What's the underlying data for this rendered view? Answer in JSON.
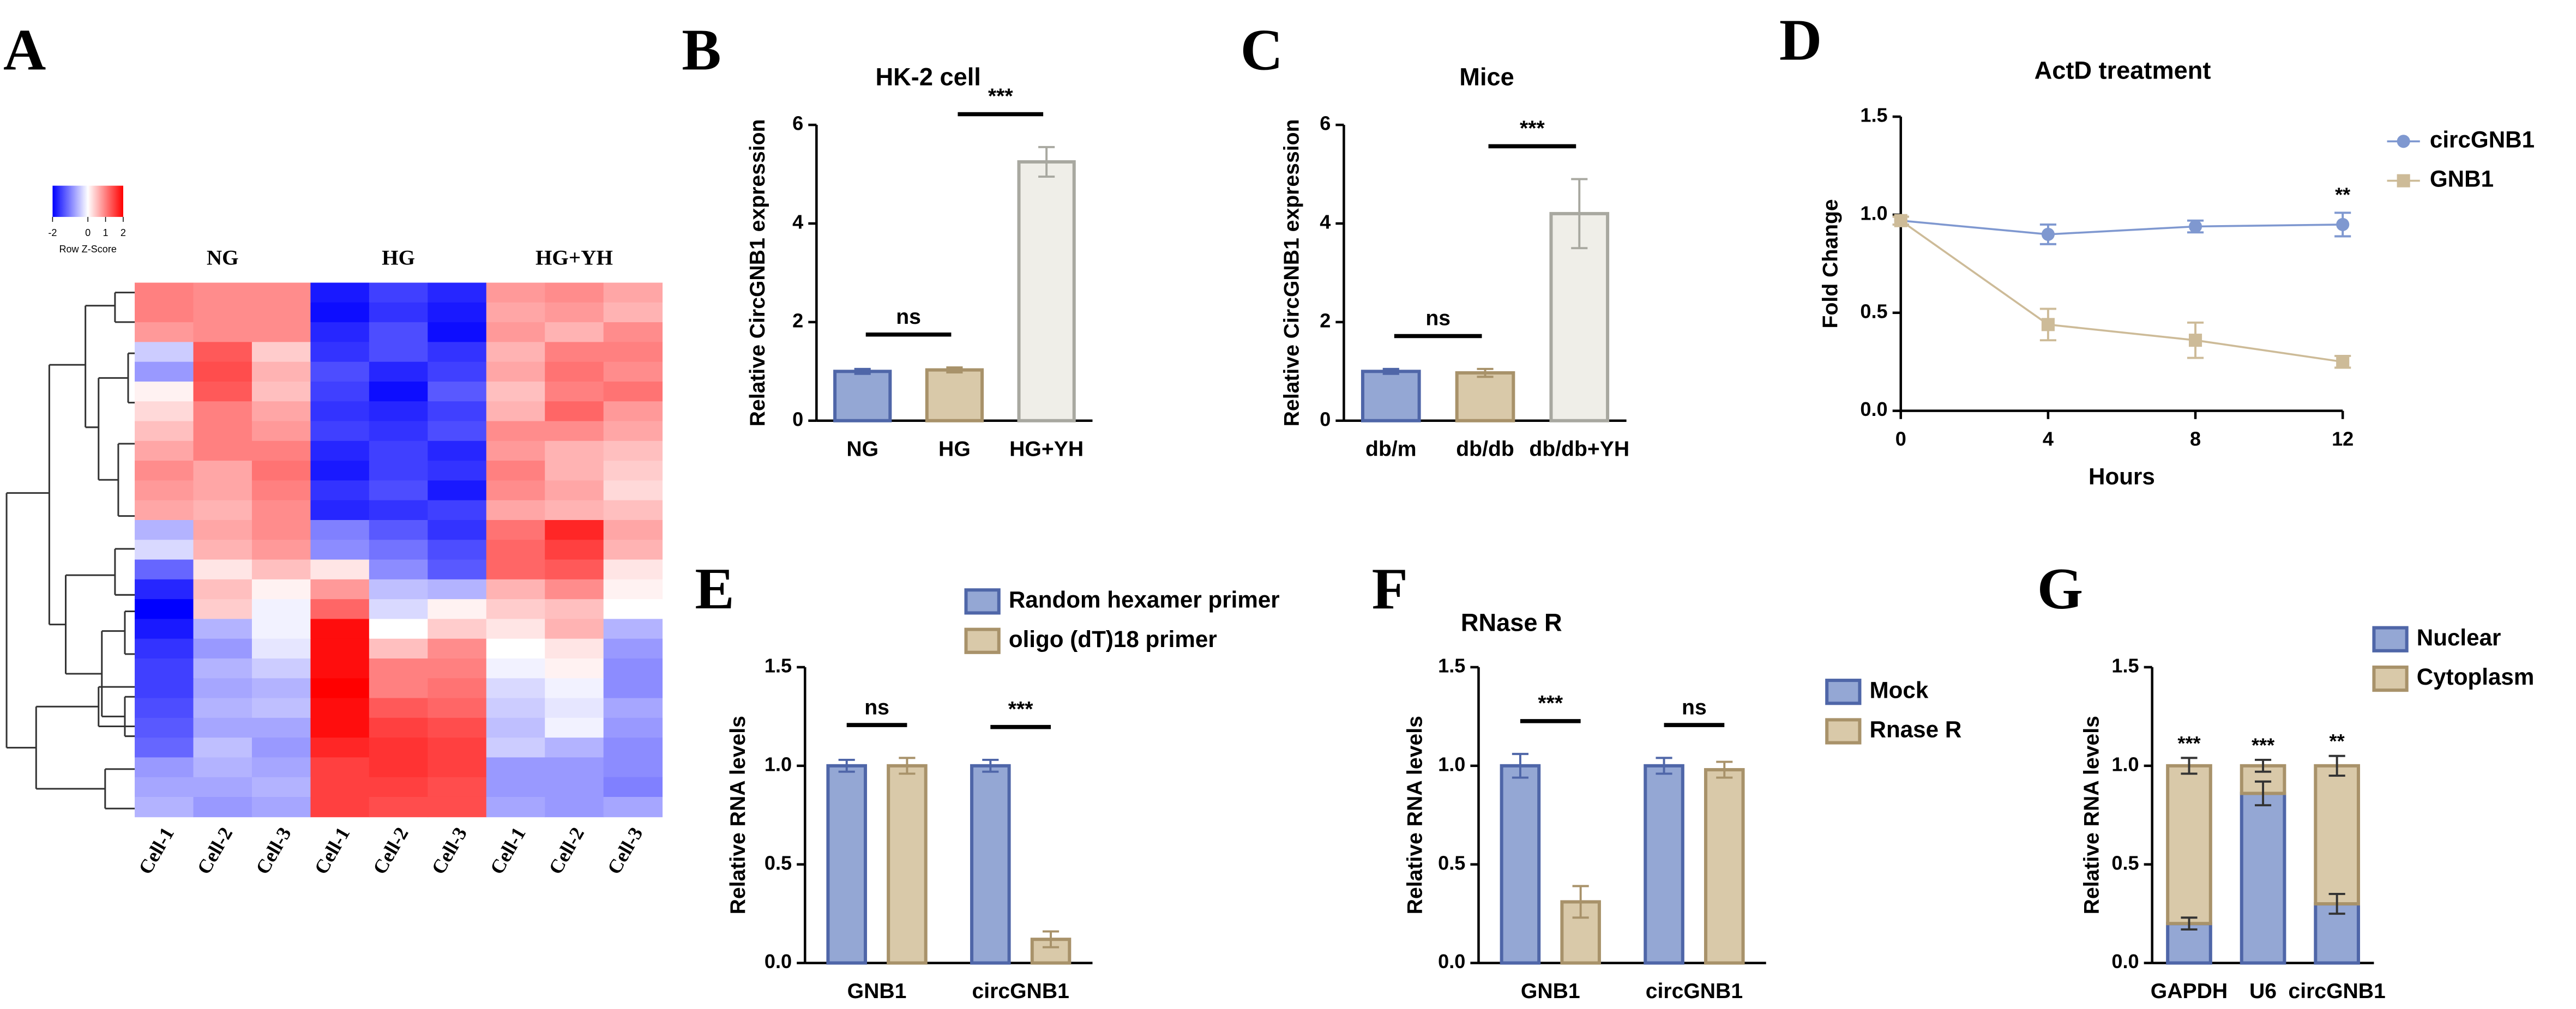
{
  "chart_data": [
    {
      "type": "heatmap",
      "panel_label": "A",
      "groups": [
        "NG",
        "HG",
        "HG+YH"
      ],
      "categories": [
        "Cell-1",
        "Cell-2",
        "Cell-3",
        "Cell-1",
        "Cell-2",
        "Cell-3",
        "Cell-1",
        "Cell-2",
        "Cell-3"
      ],
      "colorbar": {
        "label": "Row Z-Score",
        "ticks": [
          -2,
          0,
          1,
          2
        ],
        "colors": [
          "#0000ff",
          "#ffffff",
          "#ff0000"
        ]
      },
      "values": [
        [
          1.0,
          0.9,
          0.9,
          -1.8,
          -1.5,
          -1.7,
          0.8,
          0.9,
          0.7
        ],
        [
          1.0,
          0.9,
          0.9,
          -1.9,
          -1.6,
          -1.8,
          0.7,
          0.8,
          0.6
        ],
        [
          0.8,
          0.9,
          0.9,
          -1.7,
          -1.4,
          -1.9,
          0.8,
          0.6,
          0.9
        ],
        [
          -0.4,
          1.3,
          0.4,
          -1.6,
          -1.4,
          -1.6,
          0.6,
          1.0,
          1.0
        ],
        [
          -0.8,
          1.4,
          0.6,
          -1.4,
          -1.7,
          -1.5,
          0.7,
          1.1,
          0.9
        ],
        [
          0.1,
          1.3,
          0.5,
          -1.5,
          -1.9,
          -1.3,
          0.5,
          1.0,
          1.1
        ],
        [
          0.3,
          1.0,
          0.7,
          -1.6,
          -1.7,
          -1.5,
          0.6,
          1.2,
          0.8
        ],
        [
          0.5,
          1.0,
          0.8,
          -1.5,
          -1.6,
          -1.4,
          0.9,
          0.9,
          0.7
        ],
        [
          0.7,
          1.0,
          1.0,
          -1.7,
          -1.5,
          -1.7,
          0.8,
          0.6,
          0.5
        ],
        [
          0.9,
          0.7,
          1.1,
          -1.8,
          -1.5,
          -1.6,
          1.0,
          0.6,
          0.4
        ],
        [
          0.8,
          0.7,
          1.0,
          -1.6,
          -1.4,
          -1.8,
          0.9,
          0.7,
          0.3
        ],
        [
          0.7,
          0.6,
          0.9,
          -1.7,
          -1.6,
          -1.5,
          0.7,
          0.6,
          0.5
        ],
        [
          -0.6,
          0.7,
          0.9,
          -1.0,
          -1.3,
          -1.6,
          1.1,
          1.7,
          0.7
        ],
        [
          -0.3,
          0.6,
          0.8,
          -0.9,
          -1.1,
          -1.4,
          1.2,
          1.5,
          0.6
        ],
        [
          -1.2,
          0.2,
          0.5,
          0.2,
          -0.9,
          -1.3,
          1.2,
          1.3,
          0.2
        ],
        [
          -1.7,
          0.5,
          0.1,
          0.8,
          -0.5,
          -0.6,
          0.6,
          0.9,
          0.1
        ],
        [
          -2.0,
          0.4,
          -0.1,
          1.2,
          -0.3,
          0.1,
          0.4,
          0.5,
          0.0
        ],
        [
          -1.8,
          -0.6,
          -0.1,
          1.9,
          0.0,
          0.4,
          0.2,
          0.6,
          -0.6
        ],
        [
          -1.6,
          -0.8,
          -0.2,
          1.9,
          0.5,
          0.9,
          0.0,
          0.2,
          -0.8
        ],
        [
          -1.5,
          -0.6,
          -0.4,
          1.9,
          1.0,
          1.0,
          -0.1,
          0.1,
          -0.9
        ],
        [
          -1.5,
          -0.7,
          -0.6,
          2.0,
          1.0,
          1.1,
          -0.3,
          -0.1,
          -0.9
        ],
        [
          -1.4,
          -0.6,
          -0.5,
          1.9,
          1.3,
          1.2,
          -0.4,
          -0.2,
          -0.7
        ],
        [
          -1.3,
          -0.7,
          -0.7,
          1.9,
          1.5,
          1.4,
          -0.5,
          -0.1,
          -0.8
        ],
        [
          -1.2,
          -0.5,
          -0.8,
          1.7,
          1.6,
          1.5,
          -0.4,
          -0.6,
          -0.9
        ],
        [
          -0.8,
          -0.6,
          -0.7,
          1.5,
          1.6,
          1.5,
          -0.8,
          -0.8,
          -0.9
        ],
        [
          -0.7,
          -0.7,
          -0.6,
          1.5,
          1.5,
          1.4,
          -0.8,
          -0.8,
          -1.0
        ],
        [
          -0.6,
          -0.8,
          -0.7,
          1.5,
          1.4,
          1.4,
          -0.7,
          -0.8,
          -0.7
        ]
      ]
    },
    {
      "type": "bar",
      "panel_label": "B",
      "title": "HK-2 cell",
      "ylabel": "Relative CircGNB1 expression",
      "categories": [
        "NG",
        "HG",
        "HG+YH"
      ],
      "values": [
        1.0,
        1.03,
        5.25
      ],
      "errors": [
        0.05,
        0.05,
        0.3
      ],
      "colors": [
        "#94a7d4",
        "#d9c9a9",
        "#efeee8"
      ],
      "edge_colors": [
        "#4f66a8",
        "#a8926a",
        "#a8a8a0"
      ],
      "ylim": [
        0,
        6
      ],
      "yticks": [
        0,
        2,
        4,
        6
      ],
      "annotations": [
        {
          "text": "ns",
          "categories": [
            "NG",
            "HG"
          ]
        },
        {
          "text": "***",
          "categories": [
            "HG",
            "HG+YH"
          ]
        }
      ]
    },
    {
      "type": "bar",
      "panel_label": "C",
      "title": "Mice",
      "ylabel": "Relative CircGNB1 expression",
      "categories": [
        "db/m",
        "db/db",
        "db/db+YH"
      ],
      "values": [
        1.0,
        0.97,
        4.2
      ],
      "errors": [
        0.05,
        0.08,
        0.7
      ],
      "colors": [
        "#94a7d4",
        "#d9c9a9",
        "#efeee8"
      ],
      "edge_colors": [
        "#4f66a8",
        "#a8926a",
        "#a8a8a0"
      ],
      "ylim": [
        0,
        6
      ],
      "yticks": [
        0,
        2,
        4,
        6
      ],
      "annotations": [
        {
          "text": "ns",
          "categories": [
            "db/m",
            "db/db"
          ]
        },
        {
          "text": "***",
          "categories": [
            "db/db",
            "db/db+YH"
          ]
        }
      ]
    },
    {
      "type": "line",
      "panel_label": "D",
      "title": "ActD treatment",
      "xlabel": "Hours",
      "ylabel": "Fold Change",
      "x": [
        0,
        4,
        8,
        12
      ],
      "xlim": [
        0,
        12
      ],
      "xticks": [
        0,
        4,
        8,
        12
      ],
      "ylim": [
        0,
        1.5
      ],
      "yticks": [
        {
          "value": 0,
          "label": "0.0"
        },
        0.5,
        {
          "value": 1,
          "label": "1.0"
        },
        1.5
      ],
      "legend": "right",
      "series": [
        {
          "name": "circGNB1",
          "color": "#7f98d0",
          "marker": "circle",
          "values": [
            0.97,
            0.9,
            0.94,
            0.95
          ],
          "errors": [
            0.02,
            0.05,
            0.03,
            0.06
          ]
        },
        {
          "name": "GNB1",
          "color": "#cdbb98",
          "marker": "square",
          "values": [
            0.97,
            0.44,
            0.36,
            0.25
          ],
          "errors": [
            0.02,
            0.08,
            0.09,
            0.03
          ]
        }
      ],
      "annotations": [
        {
          "text": "**",
          "x": 12
        }
      ]
    },
    {
      "type": "bar",
      "panel_label": "E",
      "ylabel": "Relative RNA levels",
      "categories": [
        "GNB1",
        "circGNB1"
      ],
      "ylim": [
        0,
        1.5
      ],
      "yticks": [
        {
          "value": 0,
          "label": "0.0"
        },
        0.5,
        {
          "value": 1,
          "label": "1.0"
        },
        1.5
      ],
      "legend": "top",
      "series": [
        {
          "name": "Random hexamer primer",
          "color": "#94a7d4",
          "edge_color": "#4f66a8",
          "values": [
            1.0,
            1.0
          ],
          "errors": [
            0.03,
            0.03
          ]
        },
        {
          "name": "oligo (dT)18 primer",
          "color": "#d9c9a9",
          "edge_color": "#a8926a",
          "values": [
            1.0,
            0.12
          ],
          "errors": [
            0.04,
            0.04
          ]
        }
      ],
      "annotations": [
        {
          "text": "ns",
          "category": "GNB1"
        },
        {
          "text": "***",
          "category": "circGNB1"
        }
      ]
    },
    {
      "type": "bar",
      "panel_label": "F",
      "title": "RNase R",
      "ylabel": "Relative RNA levels",
      "categories": [
        "GNB1",
        "circGNB1"
      ],
      "ylim": [
        0,
        1.5
      ],
      "yticks": [
        {
          "value": 0,
          "label": "0.0"
        },
        0.5,
        {
          "value": 1,
          "label": "1.0"
        },
        1.5
      ],
      "legend": "right",
      "series": [
        {
          "name": "Mock",
          "color": "#94a7d4",
          "edge_color": "#4f66a8",
          "values": [
            1.0,
            1.0
          ],
          "errors": [
            0.06,
            0.04
          ]
        },
        {
          "name": "Rnase R",
          "color": "#d9c9a9",
          "edge_color": "#a8926a",
          "values": [
            0.31,
            0.98
          ],
          "errors": [
            0.08,
            0.04
          ]
        }
      ],
      "annotations": [
        {
          "text": "***",
          "category": "GNB1"
        },
        {
          "text": "ns",
          "category": "circGNB1"
        }
      ]
    },
    {
      "type": "bar",
      "panel_label": "G",
      "ylabel": "Relative RNA levels",
      "stacked": true,
      "categories": [
        "GAPDH",
        "U6",
        "circGNB1"
      ],
      "ylim": [
        0,
        1.5
      ],
      "yticks": [
        {
          "value": 0,
          "label": "0.0"
        },
        0.5,
        {
          "value": 1,
          "label": "1.0"
        },
        1.5
      ],
      "legend": "right",
      "series": [
        {
          "name": "Nuclear",
          "color": "#94a7d4",
          "edge_color": "#4f66a8",
          "values": [
            0.2,
            0.86,
            0.3
          ],
          "errors": [
            0.03,
            0.06,
            0.05
          ]
        },
        {
          "name": "Cytoplasm",
          "color": "#d9c9a9",
          "edge_color": "#a8926a",
          "values": [
            0.8,
            0.14,
            0.7
          ],
          "errors": [
            0.04,
            0.03,
            0.05
          ]
        }
      ],
      "annotations": [
        {
          "text": "***",
          "category": "GAPDH"
        },
        {
          "text": "***",
          "category": "U6"
        },
        {
          "text": "**",
          "category": "circGNB1"
        }
      ]
    }
  ]
}
